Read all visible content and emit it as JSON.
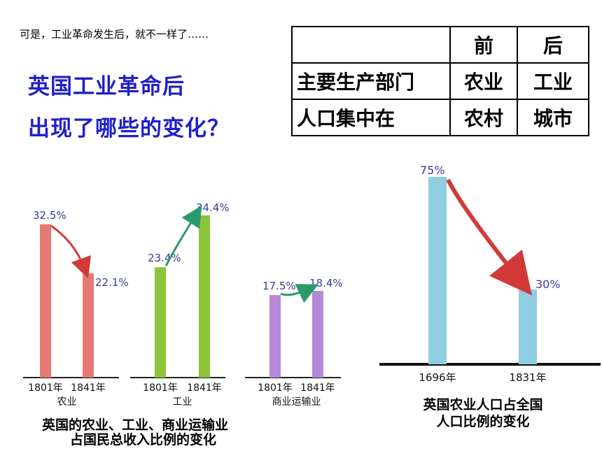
{
  "intro_text": "可是，工业革命发生后，就不一样了……",
  "question": {
    "line1": "英国工业革命后",
    "line2": "出现了哪些的变化？"
  },
  "comparison_table": {
    "header": [
      "",
      "前",
      "后"
    ],
    "rows": [
      [
        "主要生产部门",
        "农业",
        "工业"
      ],
      [
        "人口集中在",
        "农村",
        "城市"
      ]
    ]
  },
  "chart_data": [
    {
      "type": "bar",
      "title": "英国的农业、工业、商业运输业占国民总收入比例的变化",
      "title_line1": "英国的农业、工业、商业运输业",
      "title_line2": "占国民总收入比例的变化",
      "groups": [
        {
          "name": "农业",
          "categories": [
            "1801年",
            "1841年"
          ],
          "values": [
            32.5,
            22.1
          ],
          "labels": [
            "32.5%",
            "22.1%"
          ],
          "color": "#e57a72"
        },
        {
          "name": "工业",
          "categories": [
            "1801年",
            "1841年"
          ],
          "values": [
            23.4,
            34.4
          ],
          "labels": [
            "23.4%",
            "34.4%"
          ],
          "color": "#8cc43a"
        },
        {
          "name": "商业运输业",
          "categories": [
            "1801年",
            "1841年"
          ],
          "values": [
            17.5,
            18.4
          ],
          "labels": [
            "17.5%",
            "18.4%"
          ],
          "color": "#b48ad8"
        }
      ],
      "ylim": [
        0,
        40
      ],
      "grid": false
    },
    {
      "type": "bar",
      "title": "英国农业人口占全国人口比例的变化",
      "title_line1": "英国农业人口占全国",
      "title_line2": "人口比例的变化",
      "categories": [
        "1696年",
        "1831年"
      ],
      "values": [
        75,
        30
      ],
      "labels": [
        "75%",
        "30%"
      ],
      "color": "#90cde0",
      "ylim": [
        0,
        80
      ],
      "grid": false
    }
  ],
  "colors": {
    "question_text": "#2020c8",
    "arrow_fill": "#d23a3a",
    "arrow_up_fill": "#2a9a6a",
    "label_text": "#3a3a9a"
  }
}
